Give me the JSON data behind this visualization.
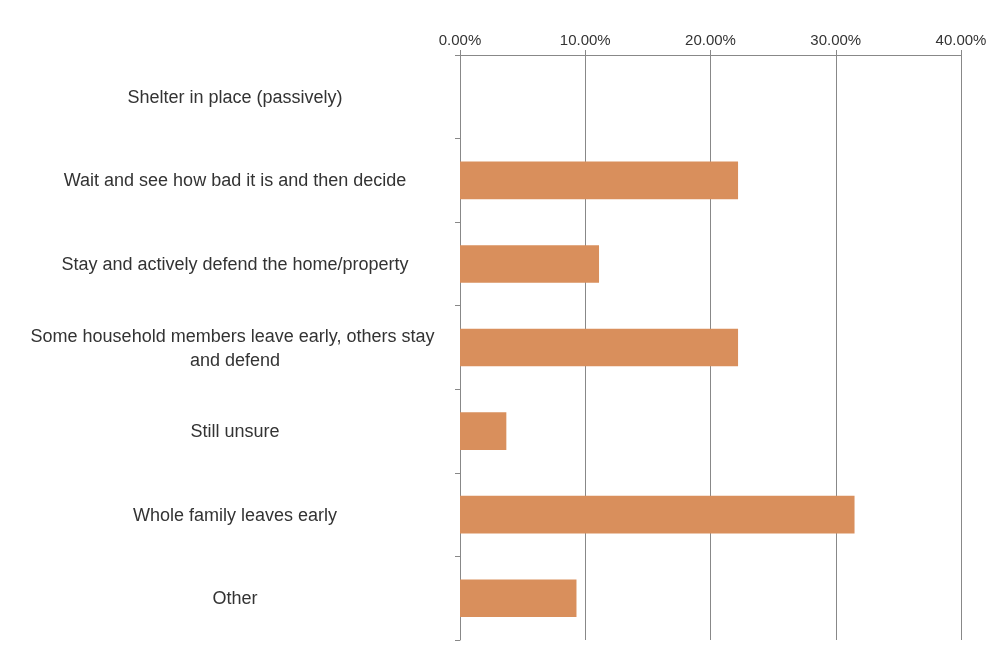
{
  "chart_data": {
    "type": "bar",
    "orientation": "horizontal",
    "categories": [
      "Shelter in place (passively)",
      "Wait and see how bad it is and then decide",
      "Stay and actively defend the home/property",
      "Some household members leave early, others stay and defend",
      "Still unsure",
      "Whole family leaves early",
      "Other"
    ],
    "values": [
      0,
      22.2,
      11.1,
      22.2,
      3.7,
      31.5,
      9.3
    ],
    "color": "#d98f5c",
    "xlim": [
      0,
      40
    ],
    "xticks": [
      {
        "value": 0,
        "label": "0.00%"
      },
      {
        "value": 10,
        "label": "10.00%"
      },
      {
        "value": 20,
        "label": "20.00%"
      },
      {
        "value": 30,
        "label": "30.00%"
      },
      {
        "value": 40,
        "label": "40.00%"
      }
    ],
    "grid": "x"
  }
}
